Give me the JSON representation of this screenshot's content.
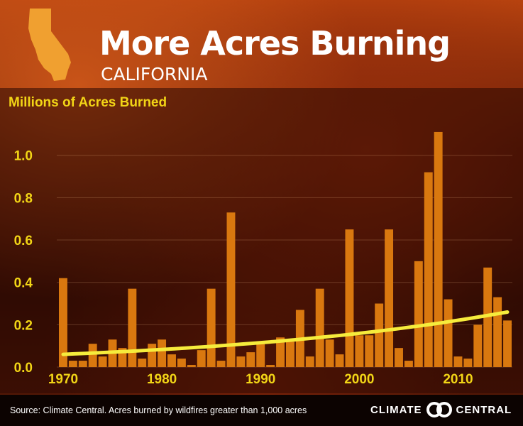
{
  "header": {
    "title": "More Acres Burning",
    "subtitle": "CALIFORNIA"
  },
  "footer": {
    "source": "Source: Climate Central. Acres burned by wildfires greater than 1,000 acres",
    "brand_left": "CLIMATE",
    "brand_right": "CENTRAL"
  },
  "colors": {
    "bar": "#d9780f",
    "trend": "#f6ec3c",
    "tick_text": "#f2d516"
  },
  "icons": [
    "california-map-icon",
    "climate-central-logo-icon"
  ],
  "chart_data": {
    "type": "bar",
    "ylabel": "Millions of Acres Burned",
    "xlabel": "",
    "ylim": [
      0,
      1.15
    ],
    "yticks": [
      "0.0",
      "0.2",
      "0.4",
      "0.6",
      "0.8",
      "1.0"
    ],
    "xticks": [
      "1970",
      "1980",
      "1990",
      "2000",
      "2010"
    ],
    "grid": true,
    "categories": [
      1970,
      1971,
      1972,
      1973,
      1974,
      1975,
      1976,
      1977,
      1978,
      1979,
      1980,
      1981,
      1982,
      1983,
      1984,
      1985,
      1986,
      1987,
      1988,
      1989,
      1990,
      1991,
      1992,
      1993,
      1994,
      1995,
      1996,
      1997,
      1998,
      1999,
      2000,
      2001,
      2002,
      2003,
      2004,
      2005,
      2006,
      2007,
      2008,
      2009,
      2010,
      2011,
      2012,
      2013,
      2014,
      2015
    ],
    "values": [
      0.42,
      0.03,
      0.03,
      0.11,
      0.05,
      0.13,
      0.09,
      0.37,
      0.04,
      0.11,
      0.13,
      0.06,
      0.04,
      0.01,
      0.08,
      0.37,
      0.03,
      0.73,
      0.05,
      0.07,
      0.12,
      0.01,
      0.14,
      0.12,
      0.27,
      0.05,
      0.37,
      0.13,
      0.06,
      0.65,
      0.15,
      0.15,
      0.3,
      0.65,
      0.09,
      0.03,
      0.5,
      0.92,
      1.11,
      0.32,
      0.05,
      0.04,
      0.2,
      0.47,
      0.33,
      0.22
    ],
    "trend": {
      "name": "",
      "x": [
        1970,
        2015
      ],
      "y": [
        0.06,
        0.26
      ]
    }
  }
}
